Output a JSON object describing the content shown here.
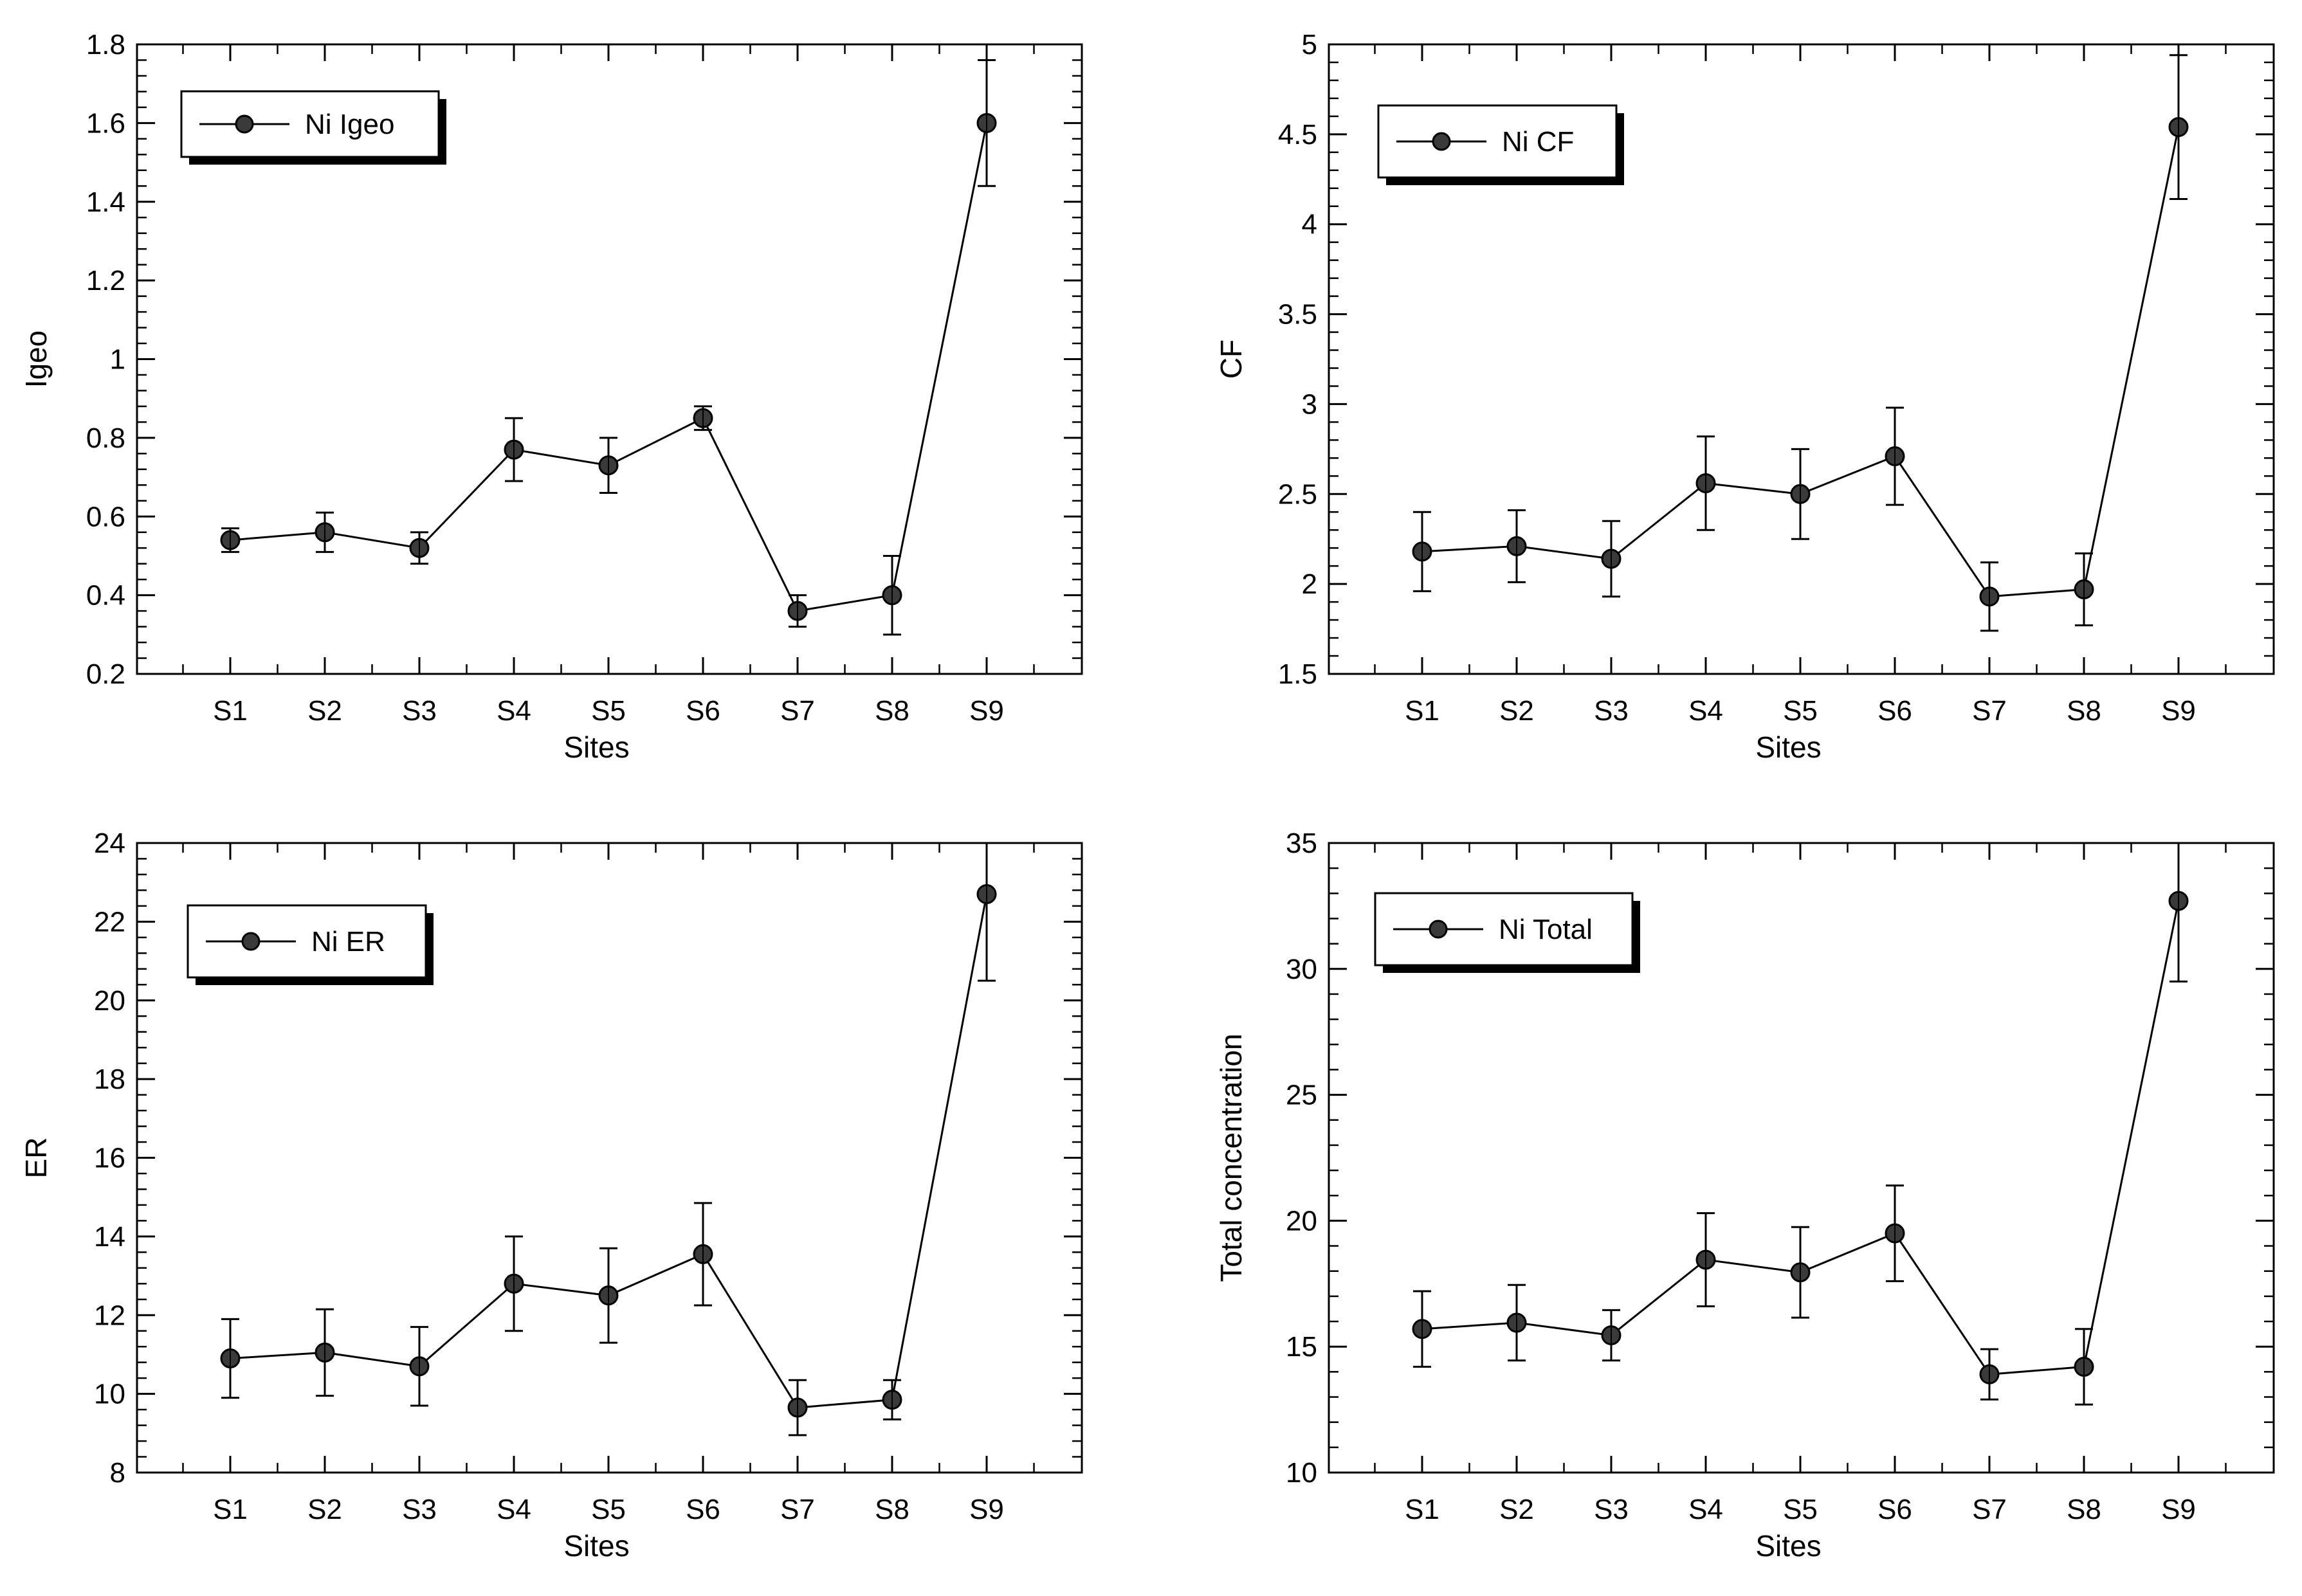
{
  "colors": {
    "background": "#ffffff",
    "ink": "#000000",
    "marker": "#3a3a3a"
  },
  "chart_data": [
    {
      "type": "line",
      "xlabel": "Sites",
      "ylabel": "Igeo",
      "categories": [
        "S1",
        "S2",
        "S3",
        "S4",
        "S5",
        "S6",
        "S7",
        "S8",
        "S9"
      ],
      "ylim": [
        0.2,
        1.8
      ],
      "yticks": [
        "0.2",
        "0.4",
        "0.6",
        "0.8",
        "1",
        "1.2",
        "1.4",
        "1.6",
        "1.8"
      ],
      "series": [
        {
          "name": "Ni Igeo",
          "values": [
            0.54,
            0.56,
            0.52,
            0.77,
            0.73,
            0.85,
            0.36,
            0.4,
            1.6
          ],
          "errors": [
            0.03,
            0.05,
            0.04,
            0.08,
            0.07,
            0.03,
            0.04,
            0.1,
            0.16
          ]
        }
      ],
      "legend": "top-left"
    },
    {
      "type": "line",
      "xlabel": "Sites",
      "ylabel": "CF",
      "categories": [
        "S1",
        "S2",
        "S3",
        "S4",
        "S5",
        "S6",
        "S7",
        "S8",
        "S9"
      ],
      "ylim": [
        1.5,
        5
      ],
      "yticks": [
        "1.5",
        "2",
        "2.5",
        "3",
        "3.5",
        "4",
        "4.5",
        "5"
      ],
      "series": [
        {
          "name": "Ni CF",
          "values": [
            2.18,
            2.21,
            2.14,
            2.56,
            2.5,
            2.71,
            1.93,
            1.97,
            4.54
          ],
          "errors": [
            0.22,
            0.2,
            0.21,
            0.26,
            0.25,
            0.27,
            0.19,
            0.2,
            0.4
          ]
        }
      ],
      "legend": "top-left"
    },
    {
      "type": "line",
      "xlabel": "Sites",
      "ylabel": "ER",
      "categories": [
        "S1",
        "S2",
        "S3",
        "S4",
        "S5",
        "S6",
        "S7",
        "S8",
        "S9"
      ],
      "ylim": [
        8,
        24
      ],
      "yticks": [
        "8",
        "10",
        "12",
        "14",
        "16",
        "18",
        "20",
        "22",
        "24"
      ],
      "series": [
        {
          "name": "Ni ER",
          "values": [
            10.9,
            11.05,
            10.7,
            12.8,
            12.5,
            13.55,
            9.65,
            9.85,
            22.7
          ],
          "errors": [
            1.0,
            1.1,
            1.0,
            1.2,
            1.2,
            1.3,
            0.7,
            0.5,
            2.2
          ]
        }
      ],
      "legend": "top-left"
    },
    {
      "type": "line",
      "xlabel": "Sites",
      "ylabel": "Total concentration",
      "categories": [
        "S1",
        "S2",
        "S3",
        "S4",
        "S5",
        "S6",
        "S7",
        "S8",
        "S9"
      ],
      "ylim": [
        10,
        35
      ],
      "yticks": [
        "10",
        "15",
        "20",
        "25",
        "30",
        "35"
      ],
      "series": [
        {
          "name": "Ni Total",
          "values": [
            15.7,
            15.95,
            15.45,
            18.45,
            17.95,
            19.5,
            13.9,
            14.2,
            32.7
          ],
          "errors": [
            1.5,
            1.5,
            1.0,
            1.85,
            1.8,
            1.9,
            1.0,
            1.5,
            3.2
          ]
        }
      ],
      "legend": "top-left"
    }
  ]
}
